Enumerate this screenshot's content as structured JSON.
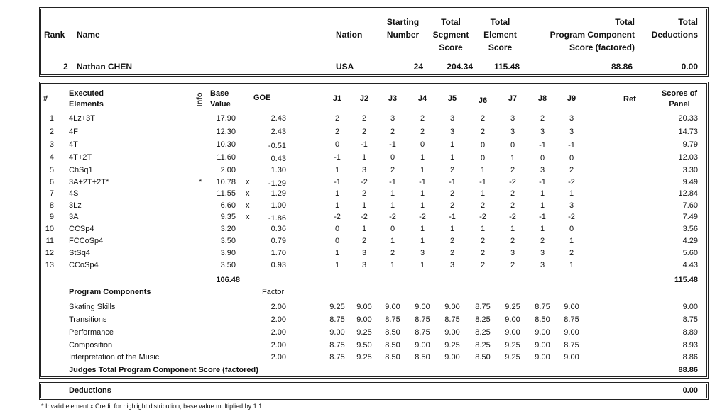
{
  "header": {
    "rank_label": "Rank",
    "name_label": "Name",
    "nation_label": "Nation",
    "starting_number_label": [
      "Starting",
      "Number"
    ],
    "tss_label": [
      "Total",
      "Segment",
      "Score"
    ],
    "tes_label": [
      "Total",
      "Element",
      "Score"
    ],
    "pcs_label": [
      "Total",
      "Program Component",
      "Score (factored)"
    ],
    "deductions_label": [
      "Total",
      "Deductions"
    ]
  },
  "skater": {
    "rank": "2",
    "name": "Nathan CHEN",
    "nation": "USA",
    "starting_number": "24",
    "total_segment_score": "204.34",
    "total_element_score": "115.48",
    "total_pcs": "88.86",
    "total_deductions": "0.00"
  },
  "elements_header": {
    "num": "#",
    "executed": [
      "Executed",
      "Elements"
    ],
    "info": "Info",
    "base_value": [
      "Base",
      "Value"
    ],
    "goe": "GOE",
    "judges": [
      "J1",
      "J2",
      "J3",
      "J4",
      "J5",
      "J6",
      "J7",
      "J8",
      "J9"
    ],
    "ref": "Ref",
    "panel": [
      "Scores of",
      "Panel"
    ]
  },
  "elements": [
    {
      "n": "1",
      "name": "4Lz+3T",
      "info": "",
      "bv": "17.90",
      "x": "",
      "goe": "2.43",
      "j": [
        "2",
        "2",
        "3",
        "2",
        "3",
        "2",
        "3",
        "2",
        "3"
      ],
      "panel": "20.33"
    },
    {
      "n": "2",
      "name": "4F",
      "info": "",
      "bv": "12.30",
      "x": "",
      "goe": "2.43",
      "j": [
        "2",
        "2",
        "2",
        "2",
        "3",
        "2",
        "3",
        "3",
        "3"
      ],
      "panel": "14.73"
    },
    {
      "n": "3",
      "name": "4T",
      "info": "",
      "bv": "10.30",
      "x": "",
      "goe": "-0.51",
      "j": [
        "0",
        "-1",
        "-1",
        "0",
        "1",
        "0",
        "0",
        "-1",
        "-1"
      ],
      "panel": "9.79"
    },
    {
      "n": "4",
      "name": "4T+2T",
      "info": "",
      "bv": "11.60",
      "x": "",
      "goe": "0.43",
      "j": [
        "-1",
        "1",
        "0",
        "1",
        "1",
        "0",
        "1",
        "0",
        "0"
      ],
      "panel": "12.03"
    },
    {
      "n": "5",
      "name": "ChSq1",
      "info": "",
      "bv": "2.00",
      "x": "",
      "goe": "1.30",
      "j": [
        "1",
        "3",
        "2",
        "1",
        "2",
        "1",
        "2",
        "3",
        "2"
      ],
      "panel": "3.30"
    },
    {
      "n": "6",
      "name": "3A+2T+2T*",
      "info": "*",
      "bv": "10.78",
      "x": "x",
      "goe": "-1.29",
      "j": [
        "-1",
        "-2",
        "-1",
        "-1",
        "-1",
        "-1",
        "-2",
        "-1",
        "-2"
      ],
      "panel": "9.49"
    },
    {
      "n": "7",
      "name": "4S",
      "info": "",
      "bv": "11.55",
      "x": "x",
      "goe": "1.29",
      "j": [
        "1",
        "2",
        "1",
        "1",
        "2",
        "1",
        "2",
        "1",
        "1"
      ],
      "panel": "12.84"
    },
    {
      "n": "8",
      "name": "3Lz",
      "info": "",
      "bv": "6.60",
      "x": "x",
      "goe": "1.00",
      "j": [
        "1",
        "1",
        "1",
        "1",
        "2",
        "2",
        "2",
        "1",
        "3"
      ],
      "panel": "7.60"
    },
    {
      "n": "9",
      "name": "3A",
      "info": "",
      "bv": "9.35",
      "x": "x",
      "goe": "-1.86",
      "j": [
        "-2",
        "-2",
        "-2",
        "-2",
        "-1",
        "-2",
        "-2",
        "-1",
        "-2"
      ],
      "panel": "7.49"
    },
    {
      "n": "10",
      "name": "CCSp4",
      "info": "",
      "bv": "3.20",
      "x": "",
      "goe": "0.36",
      "j": [
        "0",
        "1",
        "0",
        "1",
        "1",
        "1",
        "1",
        "1",
        "0"
      ],
      "panel": "3.56"
    },
    {
      "n": "11",
      "name": "FCCoSp4",
      "info": "",
      "bv": "3.50",
      "x": "",
      "goe": "0.79",
      "j": [
        "0",
        "2",
        "1",
        "1",
        "2",
        "2",
        "2",
        "2",
        "1"
      ],
      "panel": "4.29"
    },
    {
      "n": "12",
      "name": "StSq4",
      "info": "",
      "bv": "3.90",
      "x": "",
      "goe": "1.70",
      "j": [
        "1",
        "3",
        "2",
        "3",
        "2",
        "2",
        "3",
        "3",
        "2"
      ],
      "panel": "5.60"
    },
    {
      "n": "13",
      "name": "CCoSp4",
      "info": "",
      "bv": "3.50",
      "x": "",
      "goe": "0.93",
      "j": [
        "1",
        "3",
        "1",
        "1",
        "3",
        "2",
        "2",
        "3",
        "1"
      ],
      "panel": "4.43"
    }
  ],
  "base_value_total": "106.48",
  "element_panel_total": "115.48",
  "program_components": {
    "label": "Program Components",
    "factor_label": "Factor",
    "rows": [
      {
        "name": "Skating Skills",
        "factor": "2.00",
        "j": [
          "9.25",
          "9.00",
          "9.00",
          "9.00",
          "9.00",
          "8.75",
          "9.25",
          "8.75",
          "9.00"
        ],
        "panel": "9.00"
      },
      {
        "name": "Transitions",
        "factor": "2.00",
        "j": [
          "8.75",
          "9.00",
          "8.75",
          "8.75",
          "8.75",
          "8.25",
          "9.00",
          "8.50",
          "8.75"
        ],
        "panel": "8.75"
      },
      {
        "name": "Performance",
        "factor": "2.00",
        "j": [
          "9.00",
          "9.25",
          "8.50",
          "8.75",
          "9.00",
          "8.25",
          "9.00",
          "9.00",
          "9.00"
        ],
        "panel": "8.89"
      },
      {
        "name": "Composition",
        "factor": "2.00",
        "j": [
          "8.75",
          "9.50",
          "8.50",
          "9.00",
          "9.25",
          "8.25",
          "9.25",
          "9.00",
          "8.75"
        ],
        "panel": "8.93"
      },
      {
        "name": "Interpretation of the Music",
        "factor": "2.00",
        "j": [
          "8.75",
          "9.25",
          "8.50",
          "8.50",
          "9.00",
          "8.50",
          "9.25",
          "9.00",
          "9.00"
        ],
        "panel": "8.86"
      }
    ],
    "total_label": "Judges Total Program Component Score (factored)",
    "total": "88.86"
  },
  "deductions": {
    "label": "Deductions",
    "value": "0.00"
  },
  "footnote": "* Invalid element   x  Credit for highlight distribution, base value multiplied by 1.1"
}
